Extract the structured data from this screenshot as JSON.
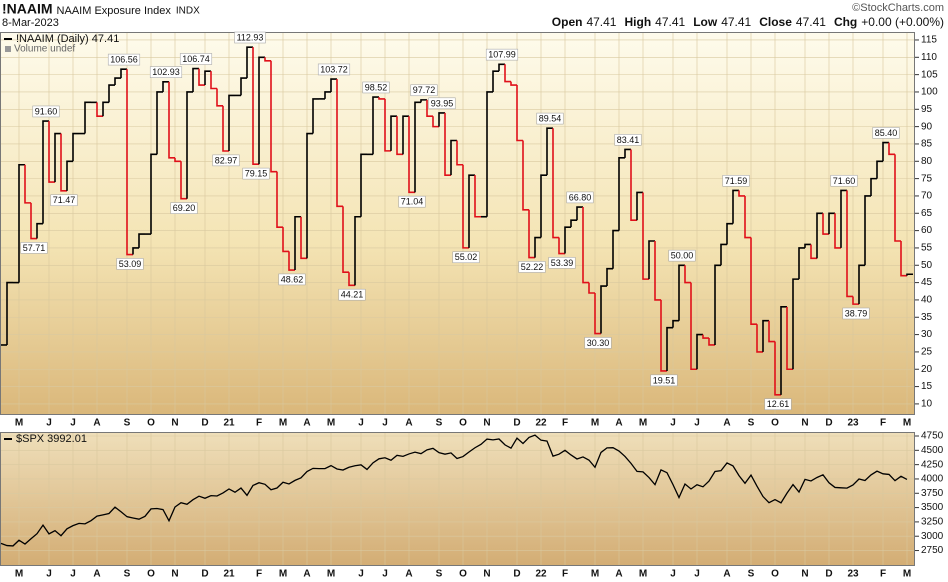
{
  "header": {
    "symbol": "!NAAIM",
    "name": "NAAIM Exposure Index",
    "exchange": "INDX",
    "date": "8-Mar-2023",
    "credit": "©StockCharts.com",
    "quote": [
      {
        "label": "Open",
        "value": "47.41"
      },
      {
        "label": "High",
        "value": "47.41"
      },
      {
        "label": "Low",
        "value": "47.41"
      },
      {
        "label": "Close",
        "value": "47.41"
      },
      {
        "label": "Chg",
        "value": "+0.00 (+0.00%)"
      }
    ]
  },
  "chart_data": [
    {
      "type": "step",
      "volume_label": "Volume undef",
      "categories": [
        null,
        null,
        null,
        "M",
        null,
        null,
        null,
        null,
        "J",
        null,
        null,
        null,
        "J",
        null,
        null,
        null,
        "A",
        null,
        null,
        null,
        null,
        "S",
        null,
        null,
        null,
        "O",
        null,
        null,
        null,
        "N",
        null,
        null,
        null,
        null,
        "D",
        null,
        null,
        null,
        "21",
        null,
        null,
        null,
        null,
        "F",
        null,
        null,
        null,
        "M",
        null,
        null,
        null,
        "A",
        null,
        null,
        null,
        "M",
        null,
        null,
        null,
        null,
        "J",
        null,
        null,
        null,
        "J",
        null,
        null,
        null,
        "A",
        null,
        null,
        null,
        null,
        "S",
        null,
        null,
        null,
        "O",
        null,
        null,
        null,
        "N",
        null,
        null,
        null,
        null,
        "D",
        null,
        null,
        null,
        "22",
        null,
        null,
        null,
        "F",
        null,
        null,
        null,
        null,
        "M",
        null,
        null,
        null,
        "A",
        null,
        null,
        null,
        "M",
        null,
        null,
        null,
        null,
        "J",
        null,
        null,
        null,
        "J",
        null,
        null,
        null,
        null,
        "A",
        null,
        null,
        null,
        "S",
        null,
        null,
        null,
        "O",
        null,
        null,
        null,
        null,
        "N",
        null,
        null,
        null,
        "D",
        null,
        null,
        null,
        "23",
        null,
        null,
        null,
        null,
        "F",
        null,
        null,
        null,
        "M"
      ],
      "series": [
        {
          "name": "!NAAIM (Daily) 47.41",
          "color": "#000000",
          "down_color": "#e0101a",
          "values": [
            27,
            45,
            45,
            79,
            68,
            57.71,
            62,
            91.6,
            74,
            88,
            71.47,
            80,
            88,
            88,
            97,
            97,
            93,
            97,
            102,
            104,
            106.56,
            53.09,
            55,
            59,
            59,
            82,
            100,
            102.93,
            81,
            80,
            69.2,
            100,
            106.74,
            102,
            106,
            101,
            96,
            82.97,
            99,
            99,
            104,
            112.93,
            79.15,
            110,
            109,
            77,
            61,
            54,
            48.62,
            64,
            52,
            88,
            98,
            98,
            100,
            103.72,
            67,
            48,
            44.21,
            64,
            82,
            82,
            98.52,
            98,
            83,
            93,
            82,
            93,
            71.04,
            97,
            97.72,
            93,
            90,
            93.95,
            76,
            86,
            79,
            55.02,
            76,
            64,
            64,
            100,
            106,
            107.99,
            103,
            102,
            86,
            66,
            52.22,
            58,
            76,
            89.54,
            58,
            53.39,
            61,
            63,
            66.8,
            45,
            42,
            30.3,
            44,
            49,
            60,
            81,
            83.41,
            63,
            71,
            46,
            57,
            40,
            19.51,
            32,
            34,
            50,
            45,
            20,
            30,
            29,
            27,
            50,
            56,
            62,
            71.59,
            70,
            58,
            33,
            25,
            34,
            28,
            12.61,
            38,
            20,
            46,
            55,
            56,
            52,
            65,
            59,
            65,
            55,
            71.6,
            41,
            38.79,
            50,
            70,
            75,
            80,
            85.4,
            82,
            57,
            47,
            47.41
          ],
          "value_labels": [
            null,
            null,
            null,
            null,
            null,
            "57.71",
            null,
            "91.60",
            null,
            null,
            "71.47",
            null,
            null,
            null,
            null,
            null,
            null,
            null,
            null,
            null,
            "106.56",
            "53.09",
            null,
            null,
            null,
            null,
            null,
            "102.93",
            null,
            null,
            "69.20",
            null,
            "106.74",
            null,
            null,
            null,
            null,
            "82.97",
            null,
            null,
            null,
            "112.93",
            "79.15",
            null,
            null,
            null,
            null,
            null,
            "48.62",
            null,
            null,
            null,
            null,
            null,
            null,
            "103.72",
            null,
            null,
            "44.21",
            null,
            null,
            null,
            "98.52",
            null,
            null,
            null,
            null,
            null,
            "71.04",
            null,
            "97.72",
            null,
            null,
            "93.95",
            null,
            null,
            null,
            "55.02",
            null,
            null,
            null,
            null,
            null,
            "107.99",
            null,
            null,
            null,
            null,
            "52.22",
            null,
            null,
            "89.54",
            null,
            "53.39",
            null,
            null,
            "66.80",
            null,
            null,
            "30.30",
            null,
            null,
            null,
            null,
            "83.41",
            null,
            null,
            null,
            null,
            null,
            "19.51",
            null,
            null,
            "50.00",
            null,
            null,
            null,
            null,
            null,
            null,
            null,
            null,
            "71.59",
            null,
            null,
            null,
            null,
            null,
            null,
            "12.61",
            null,
            null,
            null,
            null,
            null,
            null,
            null,
            null,
            null,
            null,
            "71.60",
            null,
            "38.79",
            null,
            null,
            null,
            null,
            "85.40",
            null,
            null,
            null,
            null
          ]
        }
      ],
      "ylim": [
        6.8,
        117.3
      ],
      "yticks": [
        10,
        15,
        20,
        25,
        30,
        35,
        40,
        45,
        50,
        55,
        60,
        65,
        70,
        75,
        80,
        85,
        90,
        95,
        100,
        105,
        110,
        115
      ],
      "grid": true
    },
    {
      "type": "line",
      "categories": [
        null,
        null,
        null,
        "M",
        null,
        null,
        null,
        null,
        "J",
        null,
        null,
        null,
        "J",
        null,
        null,
        null,
        "A",
        null,
        null,
        null,
        null,
        "S",
        null,
        null,
        null,
        "O",
        null,
        null,
        null,
        "N",
        null,
        null,
        null,
        null,
        "D",
        null,
        null,
        null,
        "21",
        null,
        null,
        null,
        null,
        "F",
        null,
        null,
        null,
        "M",
        null,
        null,
        null,
        "A",
        null,
        null,
        null,
        "M",
        null,
        null,
        null,
        null,
        "J",
        null,
        null,
        null,
        "J",
        null,
        null,
        null,
        "A",
        null,
        null,
        null,
        null,
        "S",
        null,
        null,
        null,
        "O",
        null,
        null,
        null,
        "N",
        null,
        null,
        null,
        null,
        "D",
        null,
        null,
        null,
        "22",
        null,
        null,
        null,
        "F",
        null,
        null,
        null,
        null,
        "M",
        null,
        null,
        null,
        "A",
        null,
        null,
        null,
        "M",
        null,
        null,
        null,
        null,
        "J",
        null,
        null,
        null,
        "J",
        null,
        null,
        null,
        null,
        "A",
        null,
        null,
        null,
        "S",
        null,
        null,
        null,
        "O",
        null,
        null,
        null,
        null,
        "N",
        null,
        null,
        null,
        "D",
        null,
        null,
        null,
        "23",
        null,
        null,
        null,
        null,
        "F",
        null,
        null,
        null,
        "M"
      ],
      "series": [
        {
          "name": "$SPX 3992.01",
          "color": "#000000",
          "values": [
            2875,
            2837,
            2831,
            2930,
            2864,
            2955,
            3044,
            3194,
            3041,
            3097,
            3009,
            3130,
            3185,
            3224,
            3216,
            3271,
            3351,
            3373,
            3397,
            3508,
            3427,
            3341,
            3319,
            3298,
            3348,
            3477,
            3484,
            3465,
            3270,
            3510,
            3585,
            3558,
            3638,
            3699,
            3663,
            3709,
            3703,
            3756,
            3825,
            3768,
            3841,
            3714,
            3887,
            3934,
            3907,
            3811,
            3842,
            3943,
            3913,
            3975,
            4020,
            4129,
            4185,
            4180,
            4181,
            4233,
            4174,
            4156,
            4204,
            4230,
            4247,
            4166,
            4281,
            4352,
            4370,
            4327,
            4412,
            4395,
            4437,
            4468,
            4442,
            4509,
            4535,
            4459,
            4433,
            4455,
            4357,
            4391,
            4471,
            4545,
            4605,
            4697,
            4683,
            4698,
            4595,
            4538,
            4712,
            4620,
            4726,
            4766,
            4677,
            4662,
            4398,
            4432,
            4500,
            4419,
            4349,
            4385,
            4329,
            4204,
            4463,
            4543,
            4546,
            4488,
            4393,
            4272,
            4132,
            4123,
            4024,
            3901,
            4158,
            4109,
            3901,
            3675,
            3912,
            3825,
            3899,
            3863,
            3962,
            4130,
            4145,
            4280,
            4228,
            4058,
            3924,
            4068,
            3873,
            3693,
            3586,
            3640,
            3583,
            3753,
            3901,
            3771,
            3993,
            3965,
            4026,
            4072,
            3934,
            3852,
            3845,
            3840,
            3895,
            3999,
            3973,
            4071,
            4136,
            4090,
            4079,
            3970,
            4046,
            3992.01
          ]
        }
      ],
      "ylim": [
        2480,
        4820
      ],
      "yticks": [
        2750,
        3000,
        3250,
        3500,
        3750,
        4000,
        4250,
        4500,
        4750
      ],
      "grid": true
    }
  ]
}
